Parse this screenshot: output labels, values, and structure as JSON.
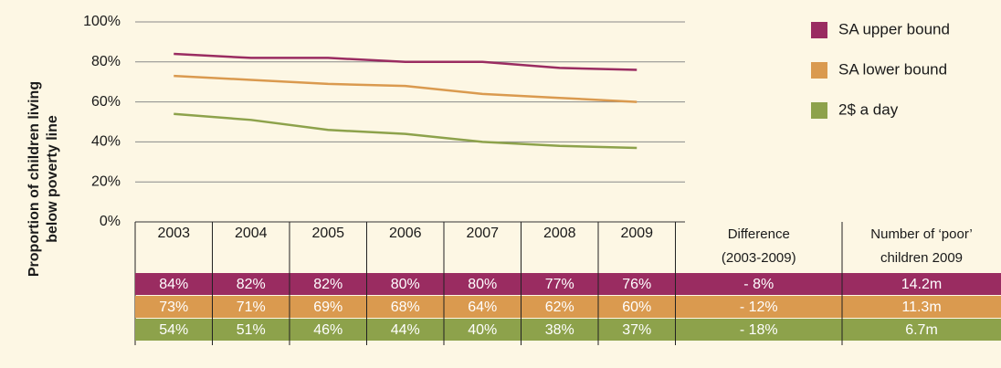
{
  "chart_data": {
    "type": "line",
    "y_label": [
      "Proportion of children living",
      "below poverty line"
    ],
    "categories": [
      "2003",
      "2004",
      "2005",
      "2006",
      "2007",
      "2008",
      "2009"
    ],
    "extra_columns": [
      [
        "Difference",
        "(2003-2009)"
      ],
      [
        "Number of ‘poor’",
        "children 2009"
      ]
    ],
    "ylim": [
      0,
      100
    ],
    "yticks": [
      {
        "value": 0,
        "label": "0%"
      },
      {
        "value": 20,
        "label": "20%"
      },
      {
        "value": 40,
        "label": "40%"
      },
      {
        "value": 60,
        "label": "60%"
      },
      {
        "value": 80,
        "label": "80%"
      },
      {
        "value": 100,
        "label": "100%"
      }
    ],
    "grid": true,
    "series": [
      {
        "name": "SA upper bound",
        "color": "#9a2c61",
        "values": [
          84,
          82,
          82,
          80,
          80,
          77,
          76
        ],
        "value_labels": [
          "84%",
          "82%",
          "82%",
          "80%",
          "80%",
          "77%",
          "76%"
        ],
        "difference": "- 8%",
        "poor_children": "14.2m"
      },
      {
        "name": "SA lower bound",
        "color": "#da9a4f",
        "values": [
          73,
          71,
          69,
          68,
          64,
          62,
          60
        ],
        "value_labels": [
          "73%",
          "71%",
          "69%",
          "68%",
          "64%",
          "62%",
          "60%"
        ],
        "difference": "- 12%",
        "poor_children": "11.3m"
      },
      {
        "name": "2$ a day",
        "color": "#8da24b",
        "values": [
          54,
          51,
          46,
          44,
          40,
          38,
          37
        ],
        "value_labels": [
          "54%",
          "51%",
          "46%",
          "44%",
          "40%",
          "38%",
          "37%"
        ],
        "difference": "- 18%",
        "poor_children": "6.7m"
      }
    ]
  }
}
